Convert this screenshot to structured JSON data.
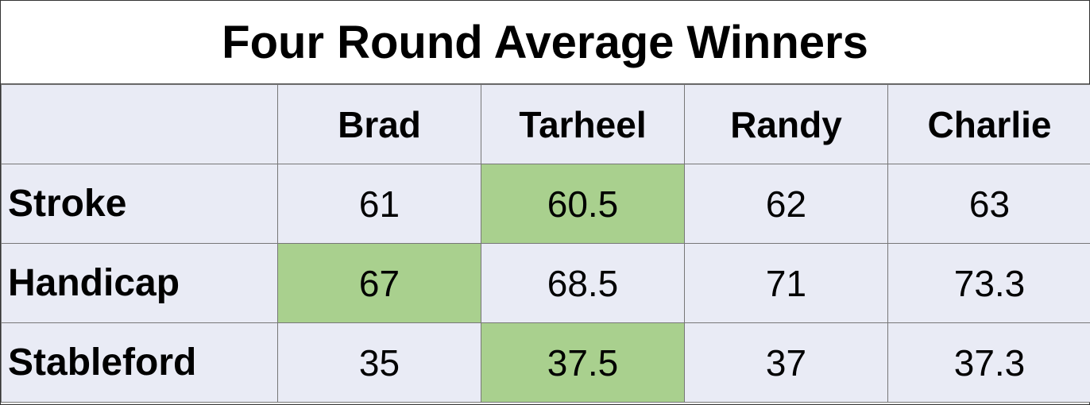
{
  "title": "Four Round Average Winners",
  "table": {
    "columns": [
      "Brad",
      "Tarheel",
      "Randy",
      "Charlie"
    ],
    "rows": [
      {
        "label": "Stroke",
        "values": [
          61,
          60.5,
          62,
          63
        ]
      },
      {
        "label": "Handicap",
        "values": [
          67,
          68.5,
          71,
          73.3
        ]
      },
      {
        "label": "Stableford",
        "values": [
          35,
          37.5,
          37,
          37.3
        ]
      }
    ]
  }
}
